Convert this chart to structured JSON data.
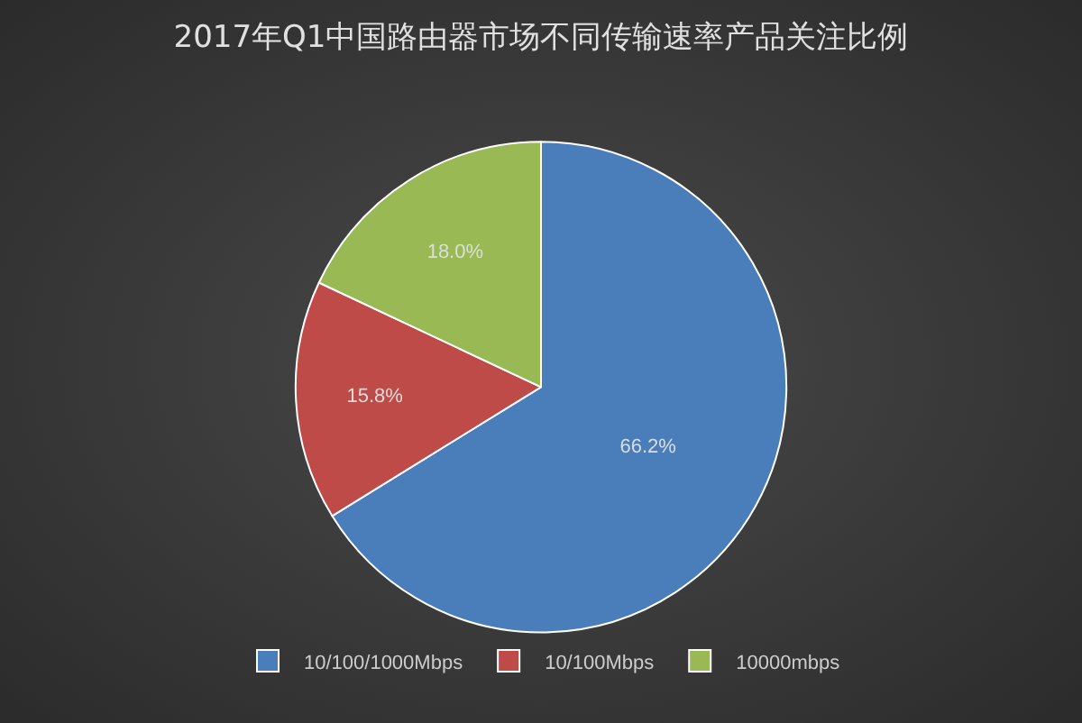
{
  "chart_data": {
    "type": "pie",
    "title": "2017年Q1中国路由器市场不同传输速率产品关注比例",
    "categories": [
      "10/100/1000Mbps",
      "10/100Mbps",
      "10000mbps"
    ],
    "values": [
      66.2,
      15.8,
      18.0
    ],
    "value_labels": [
      "66.2%",
      "15.8%",
      "18.0%"
    ],
    "colors": [
      "#4a7ebb",
      "#be4b48",
      "#98b954"
    ],
    "legend": "bottom"
  }
}
